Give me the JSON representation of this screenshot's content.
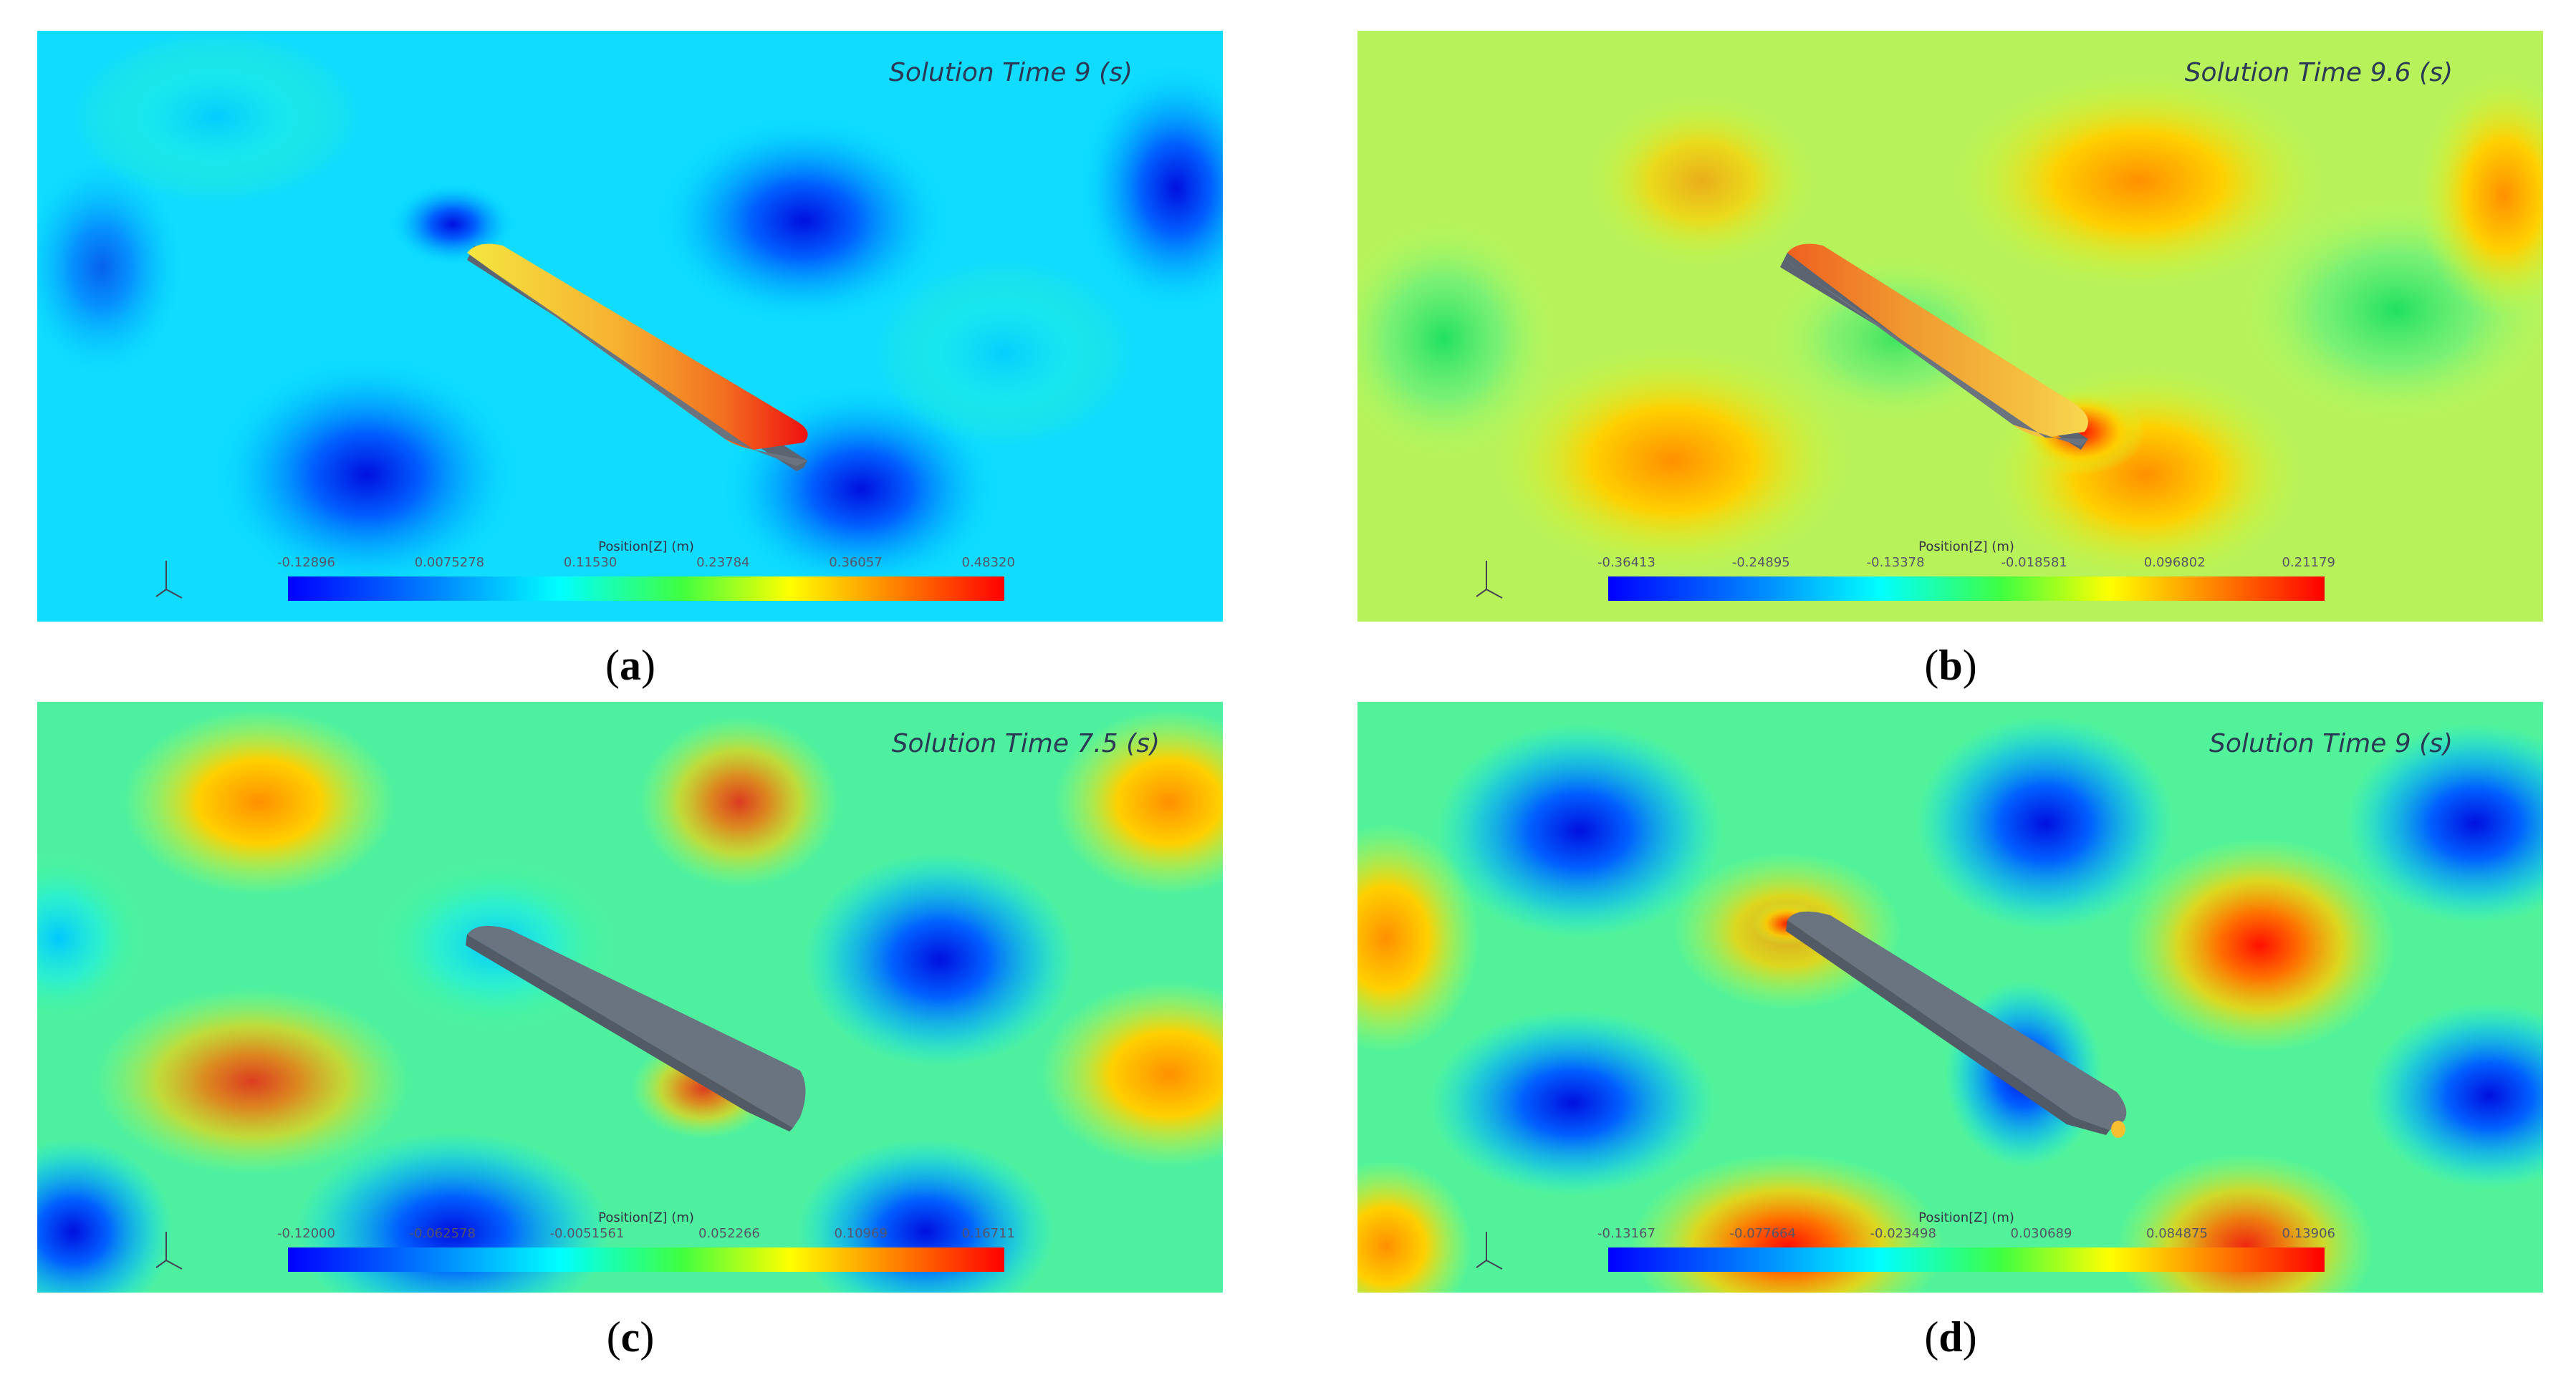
{
  "panels": [
    {
      "id": "a",
      "label": "a",
      "solution_time": "Solution Time 9 (s)",
      "legend_title": "Position[Z] (m)",
      "ticks": [
        "-0.12896",
        "0.0075278",
        "0.11530",
        "0.23784",
        "0.36057",
        "0.48320"
      ],
      "background_color": "#00e6ff"
    },
    {
      "id": "b",
      "label": "b",
      "solution_time": "Solution Time 9.6 (s)",
      "legend_title": "Position[Z] (m)",
      "ticks": [
        "-0.36413",
        "-0.24895",
        "-0.13378",
        "-0.018581",
        "0.096802",
        "0.21179"
      ],
      "background_color": "#b6f25c"
    },
    {
      "id": "c",
      "label": "c",
      "solution_time": "Solution Time 7.5 (s)",
      "legend_title": "Position[Z] (m)",
      "ticks": [
        "-0.12000",
        "-0.062578",
        "-0.0051561",
        "0.052266",
        "0.10969",
        "0.16711"
      ],
      "background_color": "#4cf0a0"
    },
    {
      "id": "d",
      "label": "d",
      "solution_time": "Solution Time 9 (s)",
      "legend_title": "Position[Z] (m)",
      "ticks": [
        "-0.13167",
        "-0.077664",
        "-0.023498",
        "0.030689",
        "0.084875",
        "0.13906"
      ],
      "background_color": "#52f29a"
    }
  ]
}
